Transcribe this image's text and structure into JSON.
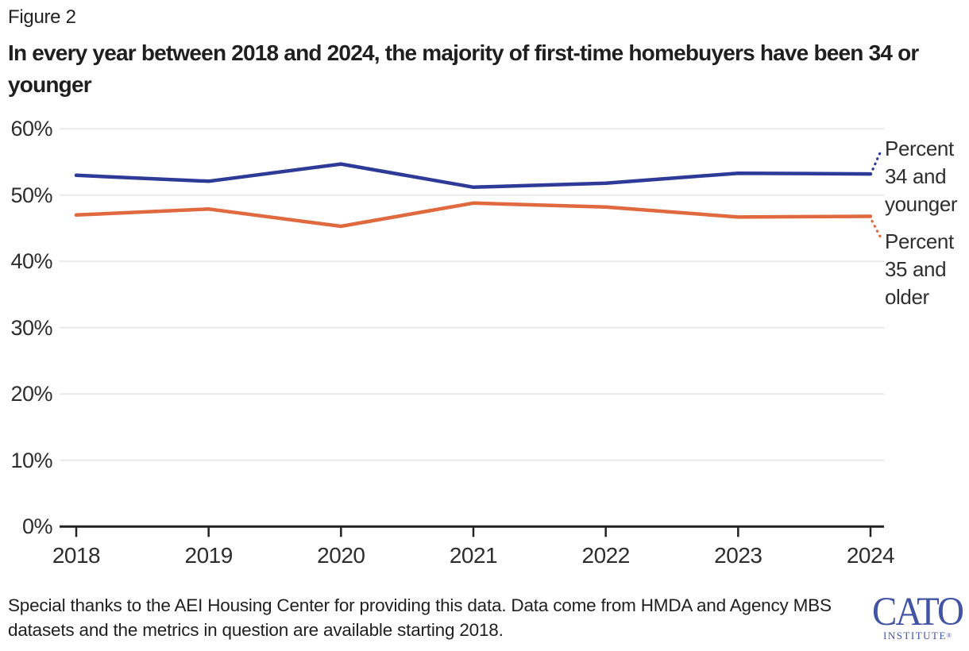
{
  "figure": {
    "label": "Figure 2",
    "title": "In every year between 2018 and 2024, the majority of first-time homebuyers have been 34 or younger"
  },
  "chart_data": {
    "type": "line",
    "title": "In every year between 2018 and 2024, the majority of first-time homebuyers have been 34 or younger",
    "x": [
      2018,
      2019,
      2020,
      2021,
      2022,
      2023,
      2024
    ],
    "x_labels": [
      "2018",
      "2019",
      "2020",
      "2021",
      "2022",
      "2023",
      "2024"
    ],
    "series": [
      {
        "name": "Percent 34 and younger",
        "color": "#2e3a97",
        "values": [
          53.0,
          52.1,
          54.7,
          51.2,
          51.8,
          53.3,
          53.2
        ]
      },
      {
        "name": "Percent 35 and older",
        "color": "#e0693f",
        "values": [
          47.0,
          47.9,
          45.3,
          48.8,
          48.2,
          46.7,
          46.8
        ]
      }
    ],
    "ylim": [
      0,
      60
    ],
    "ytick_values": [
      0,
      10,
      20,
      30,
      40,
      50,
      60
    ],
    "ytick_labels": [
      "0%",
      "10%",
      "20%",
      "30%",
      "40%",
      "50%",
      "60%"
    ],
    "xlabel": "",
    "ylabel": "",
    "grid": true,
    "legend_position": "right of line ends, connected by dotted leader lines"
  },
  "footer": {
    "credit": "Special thanks to the AEI Housing Center for providing this data. Data come from HMDA and Agency MBS datasets and the metrics in question are available starting 2018."
  },
  "logo": {
    "name": "CATO",
    "subtitle": "INSTITUTE",
    "registered_mark": "®",
    "color": "#4254a4"
  },
  "colors": {
    "blue_line": "#2e3a97",
    "orange_line": "#e0693f",
    "gridline": "#e9e9e9",
    "axis": "#222222",
    "text": "#1f1f1f"
  }
}
